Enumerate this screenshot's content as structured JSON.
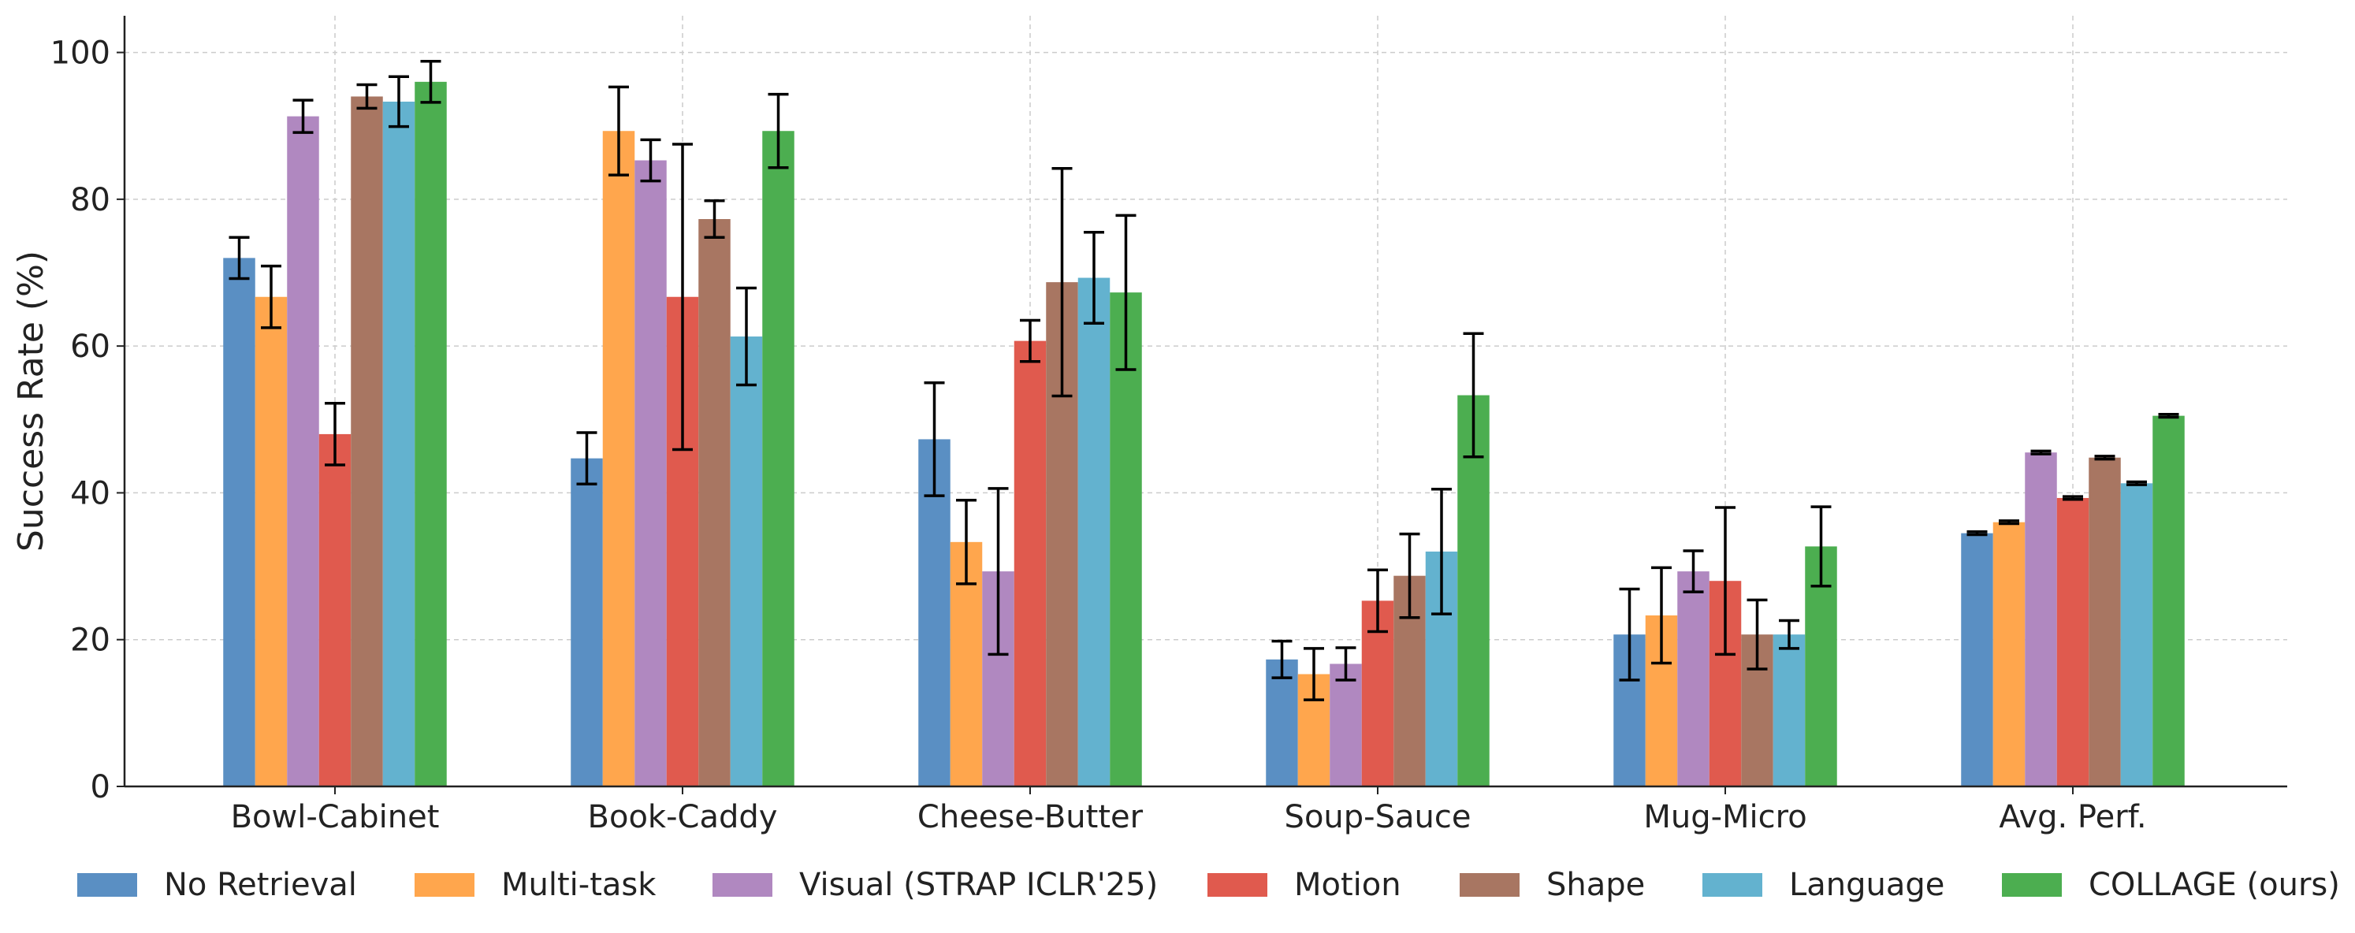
{
  "chart_data": {
    "type": "bar",
    "ylabel": "Success Rate (%)",
    "xlabel": "",
    "ylim": [
      0,
      105
    ],
    "yticks": [
      0,
      20,
      40,
      60,
      80,
      100
    ],
    "grid": true,
    "legend_position": "bottom",
    "categories": [
      "Bowl-Cabinet",
      "Book-Caddy",
      "Cheese-Butter",
      "Soup-Sauce",
      "Mug-Micro",
      "Avg. Perf."
    ],
    "series": [
      {
        "name": "No Retrieval",
        "color": "#5a8fc3",
        "values": [
          72,
          44.7,
          47.3,
          17.3,
          20.7,
          34.5
        ],
        "errors": [
          2.8,
          3.5,
          7.7,
          2.5,
          6.2,
          0.2
        ]
      },
      {
        "name": "Multi-task",
        "color": "#ffa64d",
        "values": [
          66.7,
          89.3,
          33.3,
          15.3,
          23.3,
          36
        ],
        "errors": [
          4.2,
          6.0,
          5.7,
          3.5,
          6.5,
          0.2
        ]
      },
      {
        "name": "Visual (STRAP ICLR'25)",
        "color": "#b088c0",
        "values": [
          91.3,
          85.3,
          29.3,
          16.7,
          29.3,
          45.5
        ],
        "errors": [
          2.2,
          2.8,
          11.3,
          2.2,
          2.8,
          0.2
        ]
      },
      {
        "name": "Motion",
        "color": "#e05a4e",
        "values": [
          48,
          66.7,
          60.7,
          25.3,
          28,
          39.3
        ],
        "errors": [
          4.2,
          20.8,
          2.8,
          4.2,
          10.0,
          0.2
        ]
      },
      {
        "name": "Shape",
        "color": "#a87662",
        "values": [
          94,
          77.3,
          68.7,
          28.7,
          20.7,
          44.8
        ],
        "errors": [
          1.6,
          2.5,
          15.5,
          5.7,
          4.7,
          0.2
        ]
      },
      {
        "name": "Language",
        "color": "#63b2cf",
        "values": [
          93.3,
          61.3,
          69.3,
          32,
          20.7,
          41.3
        ],
        "errors": [
          3.4,
          6.6,
          6.2,
          8.5,
          1.9,
          0.2
        ]
      },
      {
        "name": "COLLAGE (ours)",
        "color": "#4cae50",
        "values": [
          96,
          89.3,
          67.3,
          53.3,
          32.7,
          50.5
        ],
        "errors": [
          2.8,
          5.0,
          10.5,
          8.4,
          5.4,
          0.2
        ]
      }
    ]
  }
}
